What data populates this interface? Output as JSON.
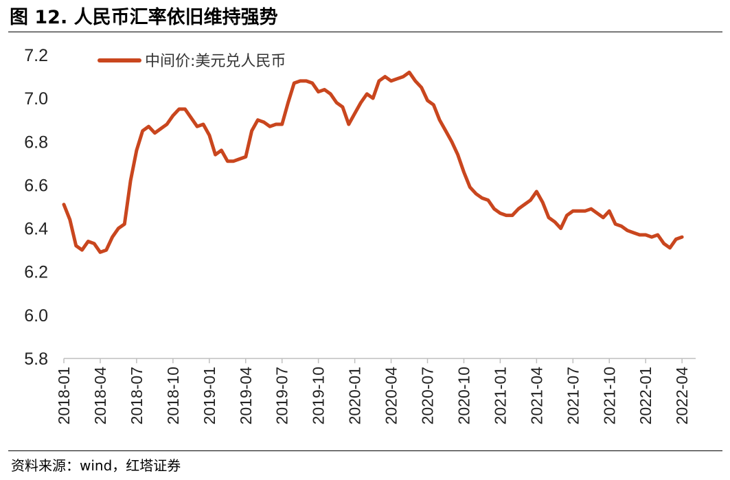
{
  "header": {
    "title": "图 12. 人民币汇率依旧维持强势"
  },
  "footer": {
    "source": "资料来源：wind，红塔证券"
  },
  "colors": {
    "series": "#C9461E",
    "axis": "#bfbfbf",
    "text": "#222222"
  },
  "chart_data": {
    "type": "line",
    "title": "",
    "xlabel": "",
    "ylabel": "",
    "ylim": [
      5.8,
      7.2
    ],
    "yticks": [
      5.8,
      6.0,
      6.2,
      6.4,
      6.6,
      6.8,
      7.0,
      7.2
    ],
    "ytick_labels": [
      "5.8",
      "6.0",
      "6.2",
      "6.4",
      "6.6",
      "6.8",
      "7.0",
      "7.2"
    ],
    "xticks": [
      "2018-01",
      "2018-04",
      "2018-07",
      "2018-10",
      "2019-01",
      "2019-04",
      "2019-07",
      "2019-10",
      "2020-01",
      "2020-04",
      "2020-07",
      "2020-10",
      "2021-01",
      "2021-04",
      "2021-07",
      "2021-10",
      "2022-01",
      "2022-04"
    ],
    "grid": false,
    "legend": "top-left",
    "series": [
      {
        "name": "中间价:美元兑人民币",
        "x": [
          "2018-01",
          "2018-01",
          "2018-02",
          "2018-02",
          "2018-03",
          "2018-03",
          "2018-04",
          "2018-04",
          "2018-05",
          "2018-05",
          "2018-06",
          "2018-06",
          "2018-07",
          "2018-07",
          "2018-08",
          "2018-08",
          "2018-09",
          "2018-09",
          "2018-10",
          "2018-10",
          "2018-11",
          "2018-11",
          "2018-12",
          "2018-12",
          "2019-01",
          "2019-01",
          "2019-02",
          "2019-02",
          "2019-03",
          "2019-03",
          "2019-04",
          "2019-04",
          "2019-05",
          "2019-05",
          "2019-06",
          "2019-06",
          "2019-07",
          "2019-07",
          "2019-08",
          "2019-08",
          "2019-09",
          "2019-09",
          "2019-10",
          "2019-10",
          "2019-11",
          "2019-11",
          "2019-12",
          "2019-12",
          "2020-01",
          "2020-01",
          "2020-02",
          "2020-02",
          "2020-03",
          "2020-03",
          "2020-04",
          "2020-04",
          "2020-05",
          "2020-05",
          "2020-06",
          "2020-06",
          "2020-07",
          "2020-07",
          "2020-08",
          "2020-08",
          "2020-09",
          "2020-09",
          "2020-10",
          "2020-10",
          "2020-11",
          "2020-11",
          "2020-12",
          "2020-12",
          "2021-01",
          "2021-01",
          "2021-02",
          "2021-02",
          "2021-03",
          "2021-03",
          "2021-04",
          "2021-04",
          "2021-05",
          "2021-05",
          "2021-06",
          "2021-06",
          "2021-07",
          "2021-07",
          "2021-08",
          "2021-08",
          "2021-09",
          "2021-09",
          "2021-10",
          "2021-10",
          "2021-11",
          "2021-11",
          "2021-12",
          "2021-12",
          "2022-01",
          "2022-01",
          "2022-02",
          "2022-02",
          "2022-03",
          "2022-03",
          "2022-04"
        ],
        "values": [
          6.51,
          6.44,
          6.32,
          6.3,
          6.34,
          6.33,
          6.29,
          6.3,
          6.36,
          6.4,
          6.42,
          6.62,
          6.76,
          6.85,
          6.87,
          6.84,
          6.86,
          6.88,
          6.92,
          6.95,
          6.95,
          6.91,
          6.87,
          6.88,
          6.83,
          6.74,
          6.76,
          6.71,
          6.71,
          6.72,
          6.73,
          6.85,
          6.9,
          6.89,
          6.87,
          6.88,
          6.88,
          6.98,
          7.07,
          7.08,
          7.08,
          7.07,
          7.03,
          7.04,
          7.02,
          6.98,
          6.96,
          6.88,
          6.93,
          6.98,
          7.02,
          7.0,
          7.08,
          7.1,
          7.08,
          7.09,
          7.1,
          7.12,
          7.08,
          7.05,
          6.99,
          6.97,
          6.9,
          6.85,
          6.8,
          6.74,
          6.66,
          6.59,
          6.56,
          6.54,
          6.53,
          6.49,
          6.47,
          6.46,
          6.46,
          6.49,
          6.51,
          6.53,
          6.57,
          6.52,
          6.45,
          6.43,
          6.4,
          6.46,
          6.48,
          6.48,
          6.48,
          6.49,
          6.47,
          6.45,
          6.48,
          6.42,
          6.41,
          6.39,
          6.38,
          6.37,
          6.37,
          6.36,
          6.37,
          6.33,
          6.31,
          6.35,
          6.36
        ]
      }
    ]
  }
}
